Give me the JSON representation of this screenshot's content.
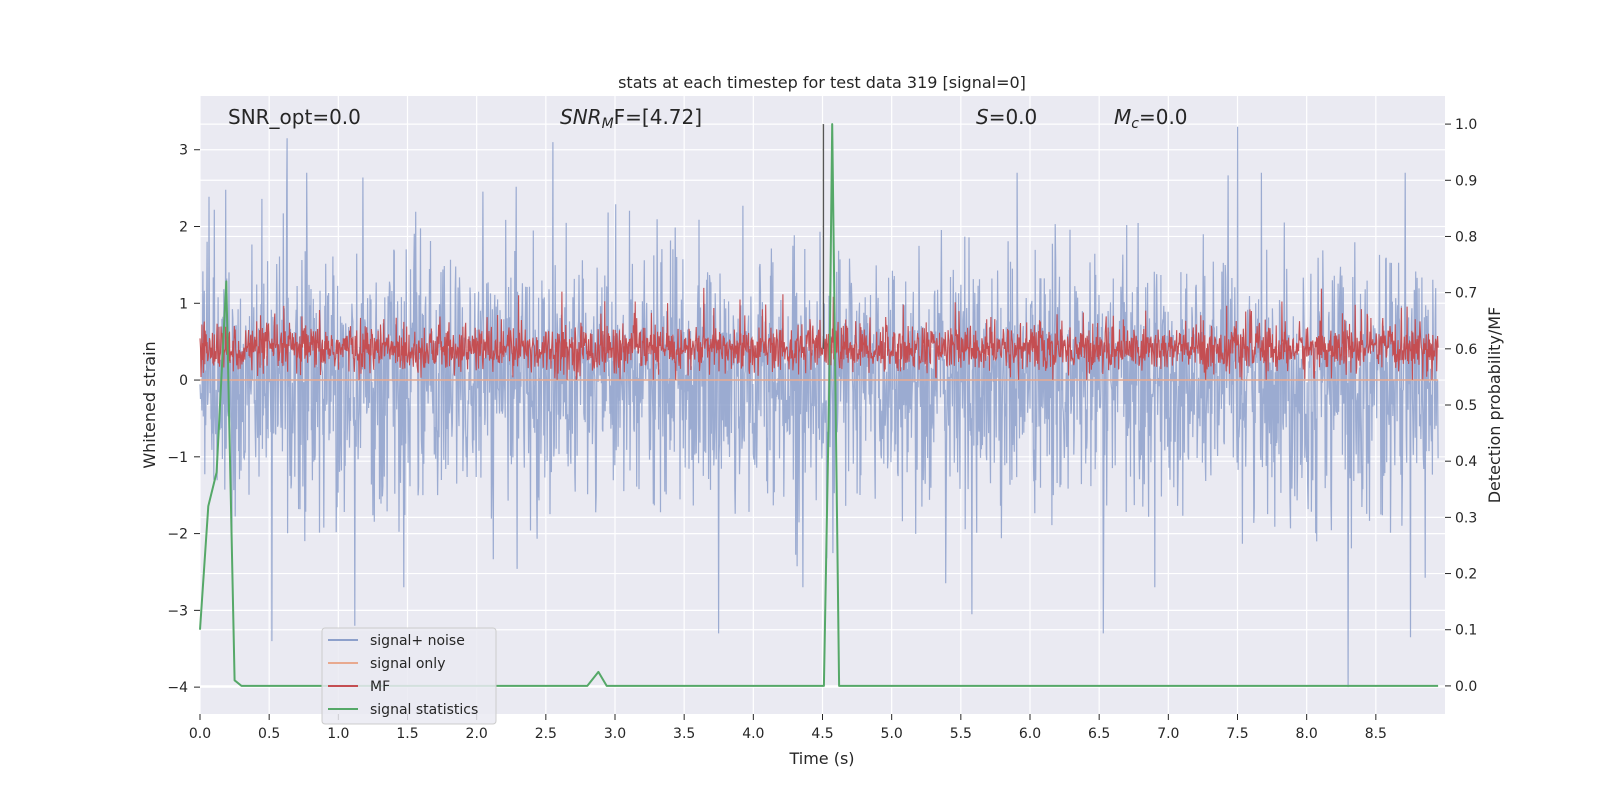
{
  "chart_data": {
    "type": "line",
    "title": "stats at each timestep for test data 319 [signal=0]",
    "xlabel": "Time (s)",
    "ylabel_left": "Whitened strain",
    "ylabel_right": "Detection probability/MF",
    "xlim": [
      0.0,
      9.0
    ],
    "ylim_left": [
      -4.35,
      3.7
    ],
    "ylim_right": [
      -0.05,
      1.05
    ],
    "x_ticks": [
      0.0,
      0.5,
      1.0,
      1.5,
      2.0,
      2.5,
      3.0,
      3.5,
      4.0,
      4.5,
      5.0,
      5.5,
      6.0,
      6.5,
      7.0,
      7.5,
      8.0,
      8.5
    ],
    "x_tick_labels": [
      "0.0",
      "0.5",
      "1.0",
      "1.5",
      "2.0",
      "2.5",
      "3.0",
      "3.5",
      "4.0",
      "4.5",
      "5.0",
      "5.5",
      "6.0",
      "6.5",
      "7.0",
      "7.5",
      "8.0",
      "8.5"
    ],
    "y_ticks_left": [
      -4,
      -3,
      -2,
      -1,
      0,
      1,
      2,
      3
    ],
    "y_tick_labels_left": [
      "−4",
      "−3",
      "−2",
      "−1",
      "0",
      "1",
      "2",
      "3"
    ],
    "y_ticks_right": [
      0.0,
      0.1,
      0.2,
      0.3,
      0.4,
      0.5,
      0.6,
      0.7,
      0.8,
      0.9,
      1.0
    ],
    "y_tick_labels_right": [
      "0.0",
      "0.1",
      "0.2",
      "0.3",
      "0.4",
      "0.5",
      "0.6",
      "0.7",
      "0.8",
      "0.9",
      "1.0"
    ],
    "grid": true,
    "legend_position": "bottom-left",
    "annotations": {
      "snr_opt": "SNR_opt=0.0",
      "snr_mf_main": "SNR",
      "snr_mf_sub": "M",
      "snr_mf_rest": "F=[4.72]",
      "s_italic": "S",
      "s_rest": "=0.0",
      "mc_main": "M",
      "mc_sub": "c",
      "mc_rest": "=0.0"
    },
    "series": [
      {
        "name": "signal+ noise",
        "axis": "left",
        "color": "#8da0cb",
        "style": "dense noise band, roughly between -1.8 and 1.8 with peaks near ±3",
        "peaks": [
          {
            "x": 0.52,
            "y": -3.4
          },
          {
            "x": 0.63,
            "y": 3.15
          },
          {
            "x": 1.12,
            "y": -3.2
          },
          {
            "x": 2.55,
            "y": 3.1
          },
          {
            "x": 3.75,
            "y": -3.3
          },
          {
            "x": 5.58,
            "y": -3.05
          },
          {
            "x": 6.53,
            "y": -3.3
          },
          {
            "x": 7.5,
            "y": 3.3
          },
          {
            "x": 8.3,
            "y": -4.0
          },
          {
            "x": 8.75,
            "y": -3.35
          }
        ]
      },
      {
        "name": "signal only",
        "axis": "left",
        "color": "#e8a98f",
        "values_note": "flat at 0"
      },
      {
        "name": "MF",
        "axis": "right",
        "color": "#c44e52",
        "style": "dense band between ~0.55 and ~0.65 on right axis",
        "spike": {
          "x": 4.55,
          "y": 1.0
        }
      },
      {
        "name": "signal statistics",
        "axis": "right",
        "color": "#55a868",
        "x": [
          0.0,
          0.06,
          0.12,
          0.19,
          0.25,
          0.3,
          2.8,
          2.88,
          2.94,
          4.5,
          4.51,
          4.55,
          4.57,
          4.62,
          4.63,
          8.95
        ],
        "y": [
          0.1,
          0.32,
          0.38,
          0.72,
          0.01,
          0.0,
          0.0,
          0.025,
          0.0,
          0.0,
          0.0,
          0.55,
          1.0,
          0.0,
          0.0,
          0.0
        ]
      }
    ]
  }
}
